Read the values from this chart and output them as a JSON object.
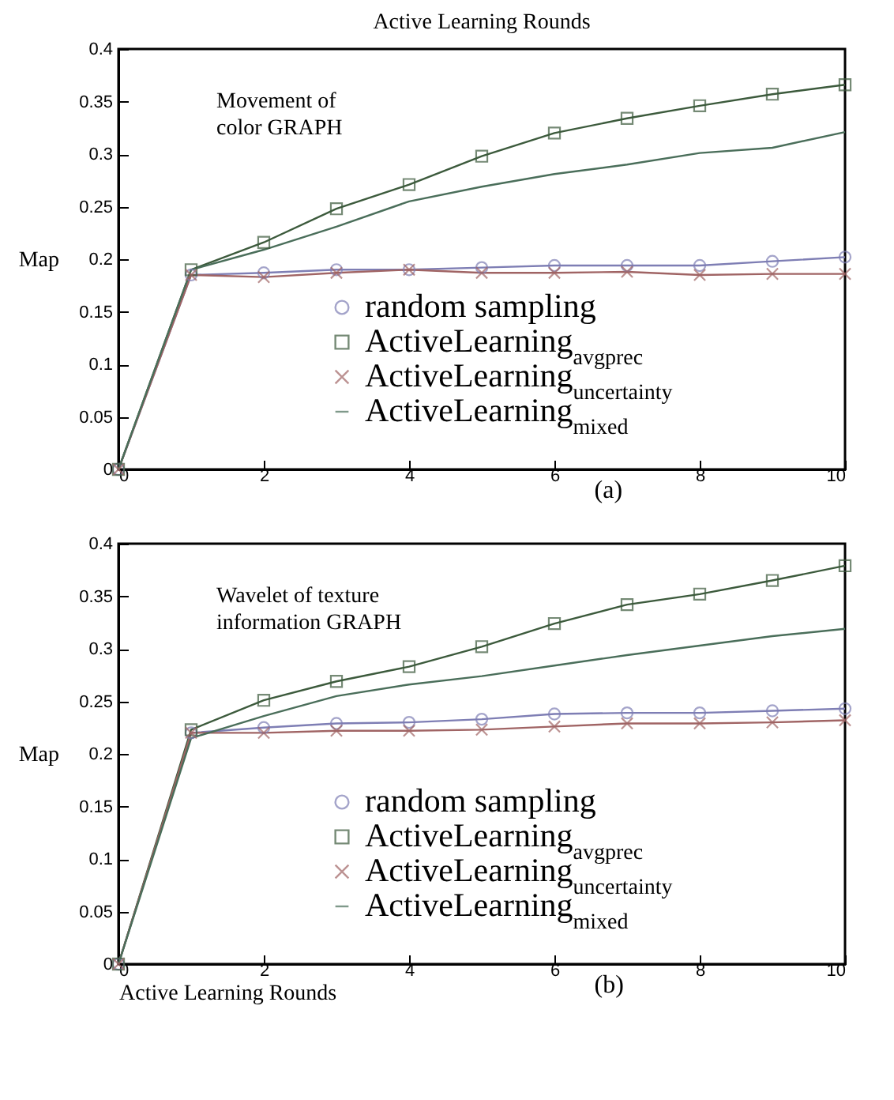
{
  "chart_data": [
    {
      "type": "line",
      "title": "Active Learning Rounds",
      "ylabel": "Map",
      "annotations": [
        "Movement of\ncolor GRAPH",
        "(a)"
      ],
      "x": [
        0,
        1,
        2,
        3,
        4,
        5,
        6,
        7,
        8,
        9,
        10
      ],
      "xlim": [
        0,
        10
      ],
      "xticks": [
        0,
        2,
        4,
        6,
        8,
        10
      ],
      "ylim": [
        0,
        0.4
      ],
      "yticks": [
        0,
        0.05,
        0.1,
        0.15,
        0.2,
        0.25,
        0.3,
        0.35,
        0.4
      ],
      "grid": false,
      "legend": "bottom right",
      "line_style": "solid",
      "series": [
        {
          "name": "random sampling",
          "color": "#7e7eb4",
          "marker": "circle",
          "values": [
            0,
            0.185,
            0.187,
            0.19,
            0.19,
            0.192,
            0.194,
            0.194,
            0.194,
            0.198,
            0.202
          ]
        },
        {
          "name": "ActiveLearning$_{avgprec}$",
          "color": "#3c5a3c",
          "marker": "square",
          "values": [
            0,
            0.19,
            0.216,
            0.248,
            0.271,
            0.298,
            0.32,
            0.334,
            0.346,
            0.357,
            0.366
          ]
        },
        {
          "name": "ActiveLearning$_{uncertainty}$",
          "color": "#a06464",
          "marker": "cross",
          "values": [
            0,
            0.185,
            0.183,
            0.187,
            0.19,
            0.187,
            0.187,
            0.188,
            0.185,
            0.186,
            0.186
          ]
        },
        {
          "name": "ActiveLearning$_{mixed}$",
          "color": "#4a6e5a",
          "marker": "none",
          "values": [
            0,
            0.19,
            0.209,
            0.231,
            0.255,
            0.269,
            0.281,
            0.29,
            0.301,
            0.306,
            0.321
          ]
        }
      ]
    },
    {
      "type": "line",
      "xlabel": "Active Learning Rounds",
      "ylabel": "Map",
      "annotations": [
        "Wavelet of texture\ninformation GRAPH",
        "(b)"
      ],
      "x": [
        0,
        1,
        2,
        3,
        4,
        5,
        6,
        7,
        8,
        9,
        10
      ],
      "xlim": [
        0,
        10
      ],
      "xticks": [
        0,
        2,
        4,
        6,
        8,
        10
      ],
      "ylim": [
        0,
        0.4
      ],
      "yticks": [
        0,
        0.05,
        0.1,
        0.15,
        0.2,
        0.25,
        0.3,
        0.35,
        0.4
      ],
      "grid": false,
      "legend": "bottom right",
      "line_style": "solid",
      "series": [
        {
          "name": "random sampling",
          "color": "#7e7eb4",
          "marker": "circle",
          "values": [
            0,
            0.22,
            0.225,
            0.229,
            0.23,
            0.233,
            0.238,
            0.239,
            0.239,
            0.241,
            0.243
          ]
        },
        {
          "name": "ActiveLearning$_{avgprec}$",
          "color": "#3c5a3c",
          "marker": "square",
          "values": [
            0,
            0.223,
            0.251,
            0.269,
            0.283,
            0.302,
            0.324,
            0.342,
            0.352,
            0.365,
            0.379
          ]
        },
        {
          "name": "ActiveLearning$_{uncertainty}$",
          "color": "#a06464",
          "marker": "cross",
          "values": [
            0,
            0.22,
            0.22,
            0.222,
            0.222,
            0.223,
            0.226,
            0.229,
            0.229,
            0.23,
            0.232
          ]
        },
        {
          "name": "ActiveLearning$_{mixed}$",
          "color": "#4a6e5a",
          "marker": "none",
          "values": [
            0,
            0.215,
            0.236,
            0.255,
            0.266,
            0.274,
            0.284,
            0.294,
            0.303,
            0.312,
            0.319
          ]
        }
      ]
    }
  ]
}
